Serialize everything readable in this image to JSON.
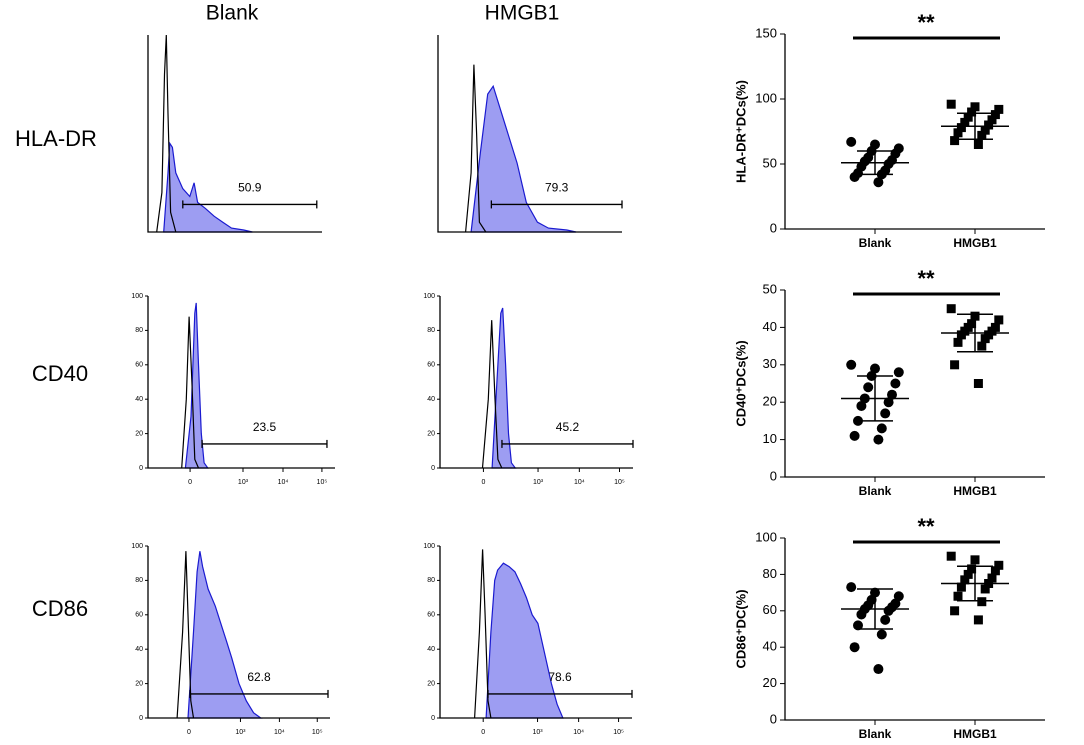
{
  "column_titles": [
    "Blank",
    "HMGB1"
  ],
  "row_labels": [
    "HLA-DR",
    "CD40",
    "CD86"
  ],
  "chart_data": [
    {
      "type": "area",
      "xlim": [
        0,
        1000
      ],
      "ylim": [
        0,
        100
      ],
      "series": [
        {
          "color": "#000000",
          "fill": "none",
          "x": [
            50,
            80,
            95,
            105,
            115,
            130,
            160
          ],
          "values": [
            0,
            20,
            80,
            100,
            60,
            10,
            0
          ]
        },
        {
          "color": "#1a1ad0",
          "fill": "#8c8cf0",
          "x": [
            90,
            115,
            125,
            140,
            160,
            200,
            240,
            265,
            285,
            330,
            380,
            430,
            480,
            550,
            600
          ],
          "values": [
            0,
            30,
            45,
            43,
            30,
            22,
            18,
            25,
            15,
            12,
            8,
            5,
            2,
            1,
            0
          ]
        }
      ],
      "gate": {
        "value": 50.9,
        "x": [
          200,
          970
        ]
      }
    },
    {
      "type": "area",
      "xlim": [
        0,
        1000
      ],
      "ylim": [
        0,
        100
      ],
      "series": [
        {
          "color": "#000000",
          "fill": "none",
          "x": [
            150,
            180,
            195,
            210,
            225,
            260
          ],
          "values": [
            0,
            30,
            85,
            50,
            5,
            0
          ]
        },
        {
          "color": "#1a1ad0",
          "fill": "#8c8cf0",
          "x": [
            180,
            230,
            270,
            300,
            330,
            380,
            430,
            480,
            540,
            600,
            700,
            750
          ],
          "values": [
            0,
            40,
            70,
            74,
            65,
            50,
            35,
            15,
            5,
            2,
            1,
            0
          ]
        }
      ],
      "gate": {
        "value": 79.3,
        "x": [
          290,
          1000
        ]
      }
    },
    {
      "type": "area",
      "xlim": [
        0,
        1000
      ],
      "ylim": [
        0,
        100
      ],
      "xticks": [
        {
          "value": 225,
          "label": "0"
        },
        {
          "value": 508,
          "label": "10³"
        },
        {
          "value": 722,
          "label": "10⁴"
        },
        {
          "value": 930,
          "label": "10⁵"
        }
      ],
      "yticks": [
        0,
        20,
        40,
        60,
        80,
        100
      ],
      "series": [
        {
          "color": "#000000",
          "fill": "none",
          "x": [
            180,
            205,
            220,
            235,
            250,
            270
          ],
          "values": [
            0,
            40,
            88,
            50,
            5,
            0
          ]
        },
        {
          "color": "#1a1ad0",
          "fill": "#8c8cf0",
          "x": [
            200,
            230,
            250,
            258,
            270,
            285,
            300,
            320
          ],
          "values": [
            0,
            30,
            90,
            96,
            60,
            20,
            3,
            0
          ]
        }
      ],
      "gate": {
        "value": 23.5,
        "x": [
          289,
          957
        ]
      }
    },
    {
      "type": "area",
      "xlim": [
        0,
        1000
      ],
      "ylim": [
        0,
        100
      ],
      "xticks": [
        {
          "value": 225,
          "label": "0"
        },
        {
          "value": 508,
          "label": "10³"
        },
        {
          "value": 722,
          "label": "10⁴"
        },
        {
          "value": 930,
          "label": "10⁵"
        }
      ],
      "yticks": [
        0,
        20,
        40,
        60,
        80,
        100
      ],
      "series": [
        {
          "color": "#000000",
          "fill": "none",
          "x": [
            220,
            250,
            268,
            285,
            300,
            320
          ],
          "values": [
            0,
            40,
            86,
            40,
            5,
            0
          ]
        },
        {
          "color": "#1a1ad0",
          "fill": "#8c8cf0",
          "x": [
            270,
            295,
            315,
            325,
            340,
            355,
            370,
            390
          ],
          "values": [
            0,
            50,
            90,
            93,
            60,
            20,
            3,
            0
          ]
        }
      ],
      "gate": {
        "value": 45.2,
        "x": [
          321,
          1000
        ]
      }
    },
    {
      "type": "area",
      "xlim": [
        0,
        1000
      ],
      "ylim": [
        0,
        100
      ],
      "xticks": [
        {
          "value": 225,
          "label": "0"
        },
        {
          "value": 508,
          "label": "10³"
        },
        {
          "value": 722,
          "label": "10⁴"
        },
        {
          "value": 930,
          "label": "10⁵"
        }
      ],
      "yticks": [
        0,
        20,
        40,
        60,
        80,
        100
      ],
      "series": [
        {
          "color": "#000000",
          "fill": "none",
          "x": [
            160,
            190,
            208,
            220,
            235,
            250
          ],
          "values": [
            0,
            50,
            97,
            60,
            10,
            0
          ]
        },
        {
          "color": "#1a1ad0",
          "fill": "#8c8cf0",
          "x": [
            220,
            250,
            270,
            285,
            300,
            330,
            370,
            400,
            430,
            460,
            500,
            540,
            580,
            620
          ],
          "values": [
            0,
            50,
            85,
            97,
            88,
            75,
            65,
            55,
            45,
            35,
            20,
            10,
            3,
            0
          ]
        }
      ],
      "gate": {
        "value": 62.8,
        "x": [
          231,
          989
        ]
      }
    },
    {
      "type": "area",
      "xlim": [
        0,
        1000
      ],
      "ylim": [
        0,
        100
      ],
      "xticks": [
        {
          "value": 225,
          "label": "0"
        },
        {
          "value": 508,
          "label": "10³"
        },
        {
          "value": 722,
          "label": "10⁴"
        },
        {
          "value": 930,
          "label": "10⁵"
        }
      ],
      "yticks": [
        0,
        20,
        40,
        60,
        80,
        100
      ],
      "series": [
        {
          "color": "#000000",
          "fill": "none",
          "x": [
            180,
            205,
            222,
            235,
            250,
            265
          ],
          "values": [
            0,
            50,
            98,
            60,
            10,
            0
          ]
        },
        {
          "color": "#1a1ad0",
          "fill": "#8c8cf0",
          "x": [
            240,
            265,
            285,
            300,
            330,
            360,
            390,
            420,
            450,
            480,
            510,
            540,
            580,
            610,
            640
          ],
          "values": [
            0,
            50,
            80,
            86,
            90,
            88,
            85,
            78,
            70,
            60,
            55,
            40,
            20,
            8,
            0
          ]
        }
      ],
      "gate": {
        "value": 78.6,
        "x": [
          250,
          1000
        ]
      }
    },
    {
      "type": "scatter",
      "ylabel": "HLA-DR⁺DCs(%)",
      "categories": [
        "Blank",
        "HMGB1"
      ],
      "annotation": "**",
      "ylim": [
        0,
        150
      ],
      "yticks": [
        0,
        50,
        100,
        150
      ],
      "series": [
        {
          "marker": "circle",
          "color": "#000000",
          "values": [
            67,
            65,
            62,
            60,
            58,
            55,
            53,
            52,
            50,
            48,
            45,
            43,
            42,
            40,
            36
          ],
          "mean": 51,
          "sd": 9
        },
        {
          "marker": "square",
          "color": "#000000",
          "values": [
            96,
            94,
            92,
            90,
            88,
            86,
            84,
            82,
            80,
            78,
            76,
            74,
            72,
            68,
            65
          ],
          "mean": 79,
          "sd": 10
        }
      ]
    },
    {
      "type": "scatter",
      "ylabel": "CD40⁺DCs(%)",
      "categories": [
        "Blank",
        "HMGB1"
      ],
      "annotation": "**",
      "ylim": [
        0,
        50
      ],
      "yticks": [
        0,
        10,
        20,
        30,
        40,
        50
      ],
      "series": [
        {
          "marker": "circle",
          "color": "#000000",
          "values": [
            30,
            29,
            28,
            27,
            25,
            24,
            22,
            21,
            20,
            19,
            17,
            15,
            13,
            11,
            10
          ],
          "mean": 21,
          "sd": 6
        },
        {
          "marker": "square",
          "color": "#000000",
          "values": [
            45,
            43,
            42,
            41,
            40,
            40,
            39,
            39,
            38,
            38,
            37,
            36,
            35,
            30,
            25
          ],
          "mean": 38.5,
          "sd": 5
        }
      ]
    },
    {
      "type": "scatter",
      "ylabel": "CD86⁺DC(%)",
      "categories": [
        "Blank",
        "HMGB1"
      ],
      "annotation": "**",
      "ylim": [
        0,
        100
      ],
      "yticks": [
        0,
        20,
        40,
        60,
        80,
        100
      ],
      "series": [
        {
          "marker": "circle",
          "color": "#000000",
          "values": [
            73,
            70,
            68,
            66,
            64,
            63,
            62,
            61,
            60,
            58,
            55,
            52,
            47,
            40,
            28
          ],
          "mean": 61,
          "sd": 11
        },
        {
          "marker": "square",
          "color": "#000000",
          "values": [
            90,
            88,
            85,
            83,
            82,
            80,
            78,
            77,
            75,
            73,
            72,
            68,
            65,
            60,
            55
          ],
          "mean": 75,
          "sd": 9.5
        }
      ]
    }
  ]
}
